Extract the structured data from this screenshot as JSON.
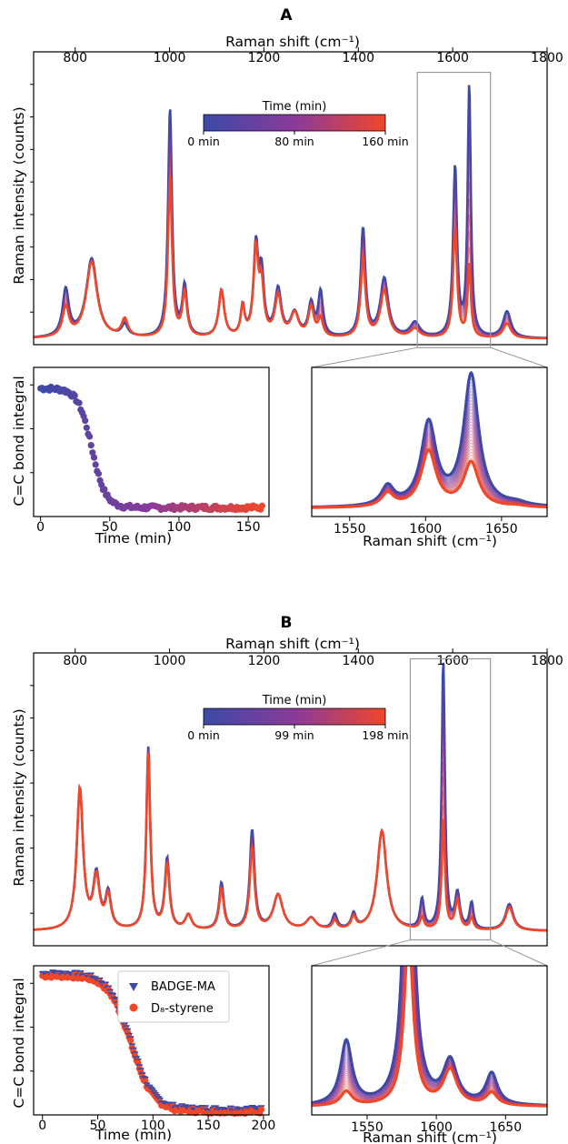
{
  "figure": {
    "panel_a_letter": "A",
    "panel_b_letter": "B"
  },
  "colors": {
    "start": "#3b4aa8",
    "mid": "#8a3a9a",
    "end": "#f0472a",
    "zoom_box": "#999999"
  },
  "chart_data": [
    {
      "id": "A-main",
      "type": "line",
      "xlabel": "Raman shift (cm⁻¹)",
      "ylabel": "Raman intensity (counts)",
      "xlim": [
        712,
        1800
      ],
      "ylim": [
        0,
        1.0
      ],
      "x_ticks": [
        "800",
        "1000",
        "1200",
        "1400",
        "1600",
        "1800"
      ],
      "x_tick_values": [
        800,
        1000,
        1200,
        1400,
        1600,
        1800
      ],
      "y_ticks_unlabeled": 8,
      "colorbar": {
        "title": "Time (min)",
        "tick_labels": [
          "0 min",
          "80 min",
          "160 min"
        ]
      },
      "baseline": 0.02,
      "peaks_start": [
        [
          780,
          0.16,
          8
        ],
        [
          835,
          0.27,
          14
        ],
        [
          905,
          0.04,
          8
        ],
        [
          1001,
          0.78,
          5
        ],
        [
          1032,
          0.17,
          6
        ],
        [
          1110,
          0.16,
          7
        ],
        [
          1155,
          0.1,
          5
        ],
        [
          1183,
          0.3,
          6
        ],
        [
          1195,
          0.2,
          6
        ],
        [
          1230,
          0.16,
          8
        ],
        [
          1265,
          0.08,
          10
        ],
        [
          1300,
          0.11,
          7
        ],
        [
          1320,
          0.15,
          6
        ],
        [
          1410,
          0.37,
          6
        ],
        [
          1455,
          0.2,
          10
        ],
        [
          1520,
          0.05,
          12
        ],
        [
          1605,
          0.58,
          5
        ],
        [
          1635,
          0.86,
          4
        ],
        [
          1715,
          0.09,
          10
        ]
      ],
      "peaks_end": [
        [
          780,
          0.1,
          8
        ],
        [
          835,
          0.26,
          14
        ],
        [
          905,
          0.06,
          8
        ],
        [
          1001,
          0.55,
          5
        ],
        [
          1032,
          0.15,
          6
        ],
        [
          1110,
          0.16,
          7
        ],
        [
          1155,
          0.1,
          5
        ],
        [
          1183,
          0.29,
          6
        ],
        [
          1195,
          0.16,
          6
        ],
        [
          1230,
          0.14,
          8
        ],
        [
          1265,
          0.08,
          10
        ],
        [
          1300,
          0.1,
          7
        ],
        [
          1320,
          0.06,
          6
        ],
        [
          1410,
          0.27,
          6
        ],
        [
          1455,
          0.16,
          10
        ],
        [
          1520,
          0.03,
          12
        ],
        [
          1605,
          0.38,
          5
        ],
        [
          1635,
          0.25,
          4
        ],
        [
          1715,
          0.05,
          10
        ]
      ],
      "zoom_range": [
        1525,
        1680
      ],
      "n_curves": 12
    },
    {
      "id": "A-kinetics",
      "type": "scatter",
      "xlabel": "Time (min)",
      "ylabel": "C=C bond integral",
      "x_ticks": [
        "0",
        "50",
        "100",
        "150"
      ],
      "x_tick_values": [
        0,
        50,
        100,
        150
      ],
      "xlim": [
        -5,
        165
      ],
      "ylim": [
        0,
        1.0
      ],
      "decay": {
        "t0": 0,
        "t1": 160,
        "top": 0.86,
        "bottom": 0.06,
        "mid": 37,
        "width": 5
      },
      "n_points": 150
    },
    {
      "id": "A-zoom",
      "type": "line",
      "xlabel": "Raman shift (cm⁻¹)",
      "x_ticks": [
        "1550",
        "1600",
        "1650"
      ],
      "x_tick_values": [
        1550,
        1600,
        1650
      ],
      "xlim": [
        1525,
        1680
      ],
      "ylim": [
        0,
        1.0
      ],
      "peaks_start": [
        [
          1575,
          0.13,
          5
        ],
        [
          1602,
          0.56,
          6
        ],
        [
          1630,
          0.89,
          6
        ],
        [
          1660,
          0.02,
          8
        ]
      ],
      "peaks_end": [
        [
          1575,
          0.09,
          5
        ],
        [
          1602,
          0.38,
          6
        ],
        [
          1630,
          0.3,
          6
        ],
        [
          1660,
          0.01,
          8
        ]
      ],
      "n_curves": 30
    },
    {
      "id": "B-main",
      "type": "line",
      "xlabel": "Raman shift (cm⁻¹)",
      "ylabel": "Raman intensity (counts)",
      "xlim": [
        712,
        1800
      ],
      "ylim": [
        0,
        1.0
      ],
      "x_ticks": [
        "800",
        "1000",
        "1200",
        "1400",
        "1600",
        "1800"
      ],
      "x_tick_values": [
        800,
        1000,
        1200,
        1400,
        1600,
        1800
      ],
      "y_ticks_unlabeled": 8,
      "colorbar": {
        "title": "Time (min)",
        "tick_labels": [
          "0 min",
          "99 min",
          "198 min"
        ]
      },
      "baseline": 0.05,
      "peaks_start": [
        [
          810,
          0.48,
          8
        ],
        [
          845,
          0.18,
          8
        ],
        [
          870,
          0.12,
          7
        ],
        [
          955,
          0.62,
          5
        ],
        [
          995,
          0.24,
          6
        ],
        [
          1040,
          0.05,
          8
        ],
        [
          1110,
          0.16,
          6
        ],
        [
          1175,
          0.34,
          6
        ],
        [
          1230,
          0.12,
          12
        ],
        [
          1300,
          0.04,
          12
        ],
        [
          1350,
          0.05,
          6
        ],
        [
          1390,
          0.05,
          6
        ],
        [
          1450,
          0.34,
          12
        ],
        [
          1535,
          0.1,
          5
        ],
        [
          1580,
          0.92,
          4
        ],
        [
          1610,
          0.12,
          6
        ],
        [
          1640,
          0.09,
          5
        ],
        [
          1720,
          0.09,
          10
        ]
      ],
      "peaks_end": [
        [
          810,
          0.48,
          8
        ],
        [
          845,
          0.17,
          8
        ],
        [
          870,
          0.11,
          7
        ],
        [
          955,
          0.6,
          5
        ],
        [
          995,
          0.22,
          6
        ],
        [
          1040,
          0.05,
          8
        ],
        [
          1110,
          0.14,
          6
        ],
        [
          1175,
          0.28,
          6
        ],
        [
          1230,
          0.12,
          12
        ],
        [
          1300,
          0.04,
          12
        ],
        [
          1350,
          0.03,
          6
        ],
        [
          1390,
          0.04,
          6
        ],
        [
          1450,
          0.34,
          12
        ],
        [
          1535,
          0.04,
          5
        ],
        [
          1580,
          0.38,
          4
        ],
        [
          1610,
          0.1,
          6
        ],
        [
          1640,
          0.04,
          5
        ],
        [
          1720,
          0.08,
          10
        ]
      ],
      "zoom_range": [
        1510,
        1680
      ],
      "n_curves": 12
    },
    {
      "id": "B-kinetics",
      "type": "scatter",
      "xlabel": "Time (min)",
      "ylabel": "C=C bond integral",
      "x_ticks": [
        "0",
        "50",
        "100",
        "150",
        "200"
      ],
      "x_tick_values": [
        0,
        50,
        100,
        150,
        200
      ],
      "xlim": [
        -8,
        205
      ],
      "ylim": [
        0,
        1.0
      ],
      "series": [
        {
          "name": "BADGE-MA",
          "marker": "triangle",
          "color": "#3b4aa8"
        },
        {
          "name": "D₈-styrene",
          "marker": "circle",
          "color": "#f0472a"
        }
      ],
      "decay": {
        "t0": 0,
        "t1": 198,
        "top": 0.94,
        "bottom": 0.03,
        "mid": 80,
        "width": 10
      },
      "n_points": 150
    },
    {
      "id": "B-zoom",
      "type": "line",
      "xlabel": "Raman shift (cm⁻¹)",
      "x_ticks": [
        "1550",
        "1600",
        "1650"
      ],
      "x_tick_values": [
        1550,
        1600,
        1650
      ],
      "xlim": [
        1510,
        1680
      ],
      "ylim": [
        0,
        1.0
      ],
      "peaks_start": [
        [
          1535,
          0.45,
          5
        ],
        [
          1580,
          2.6,
          4
        ],
        [
          1610,
          0.3,
          6
        ],
        [
          1640,
          0.22,
          5
        ]
      ],
      "peaks_end": [
        [
          1535,
          0.1,
          5
        ],
        [
          1580,
          1.2,
          4
        ],
        [
          1610,
          0.25,
          6
        ],
        [
          1640,
          0.09,
          5
        ]
      ],
      "n_curves": 30
    }
  ]
}
